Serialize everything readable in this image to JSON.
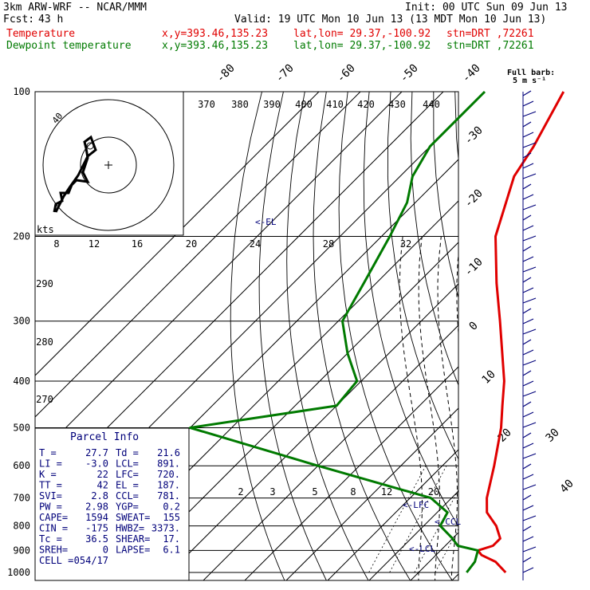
{
  "header": {
    "model": "3km ARW-WRF -- NCAR/MMM",
    "init": "Init: 00 UTC Sun 09 Jun 13",
    "fcst_label": "Fcst:",
    "fcst_value": "43 h",
    "valid": "Valid: 19 UTC Mon 10 Jun 13 (13 MDT Mon 10 Jun 13)",
    "temp_label": "Temperature",
    "dew_label": "Dewpoint temperature",
    "xy": "x,y=393.46,135.23",
    "latlon": "lat,lon= 29.37,-100.92",
    "stn": "stn=DRT ,72261"
  },
  "wind_legend": {
    "title": "Full barb:",
    "unit": "5 m s⁻¹"
  },
  "hodograph": {
    "unit": "kts",
    "ring_label": "40",
    "speed_ticks": [
      "8",
      "12",
      "16",
      "20",
      "24",
      "28",
      "32"
    ]
  },
  "parcel": {
    "title": "Parcel Info",
    "rows": [
      {
        "a": "T  =",
        "av": "27.7",
        "b": "Td =",
        "bv": "21.6"
      },
      {
        "a": "LI =",
        "av": "-3.0",
        "b": "LCL=",
        "bv": "891."
      },
      {
        "a": "K  =",
        "av": "22",
        "b": "LFC=",
        "bv": "720."
      },
      {
        "a": "TT =",
        "av": "42",
        "b": "EL =",
        "bv": "187."
      },
      {
        "a": "SVI=",
        "av": "2.8",
        "b": "CCL=",
        "bv": "781."
      },
      {
        "a": "PW =",
        "av": "2.98",
        "b": "YGP=",
        "bv": "0.2"
      },
      {
        "a": "CAPE=",
        "av": "1594",
        "b": "SWEAT=",
        "bv": "155"
      },
      {
        "a": "CIN =",
        "av": "-175",
        "b": "HWBZ=",
        "bv": "3373."
      },
      {
        "a": "Tc =",
        "av": "36.5",
        "b": "SHEAR=",
        "bv": "17."
      },
      {
        "a": "SREH=",
        "av": "0",
        "b": "LAPSE=",
        "bv": "6.1"
      },
      {
        "a": "CELL =",
        "av": "054/17",
        "b": "",
        "bv": ""
      }
    ]
  },
  "chart_data": {
    "type": "line",
    "xlabel": "",
    "ylabel": "",
    "pressure_levels": [
      "100",
      "200",
      "300",
      "400",
      "500",
      "600",
      "700",
      "800",
      "900",
      "1000"
    ],
    "isotherm_labels": [
      "-80",
      "-70",
      "-60",
      "-50",
      "-40",
      "-30",
      "-20",
      "-10",
      "0",
      "10",
      "20",
      "30",
      "40"
    ],
    "theta_labels": [
      "370",
      "380",
      "390",
      "400",
      "410",
      "420",
      "430",
      "440",
      "290",
      "280",
      "270"
    ],
    "mixing_ratio_labels": [
      "2",
      "3",
      "5",
      "8",
      "12",
      "20"
    ],
    "markers": [
      "<-EL",
      "<-LFC",
      "<-CCL",
      "<-LCL"
    ],
    "series": [
      {
        "name": "Temperature",
        "color": "#e00000",
        "points": [
          [
            1000,
            31
          ],
          [
            950,
            26
          ],
          [
            920,
            21
          ],
          [
            900,
            19
          ],
          [
            880,
            21.5
          ],
          [
            850,
            21.5
          ],
          [
            800,
            17.5
          ],
          [
            750,
            12
          ],
          [
            700,
            8.5
          ],
          [
            600,
            2.5
          ],
          [
            500,
            -5
          ],
          [
            450,
            -10
          ],
          [
            400,
            -15.5
          ],
          [
            300,
            -31
          ],
          [
            250,
            -41
          ],
          [
            200,
            -52.5
          ],
          [
            150,
            -62.5
          ],
          [
            130,
            -65
          ],
          [
            100,
            -71
          ]
        ]
      },
      {
        "name": "Dewpoint temperature",
        "color": "#007a00",
        "points": [
          [
            1000,
            21.6
          ],
          [
            950,
            21
          ],
          [
            900,
            19
          ],
          [
            880,
            13
          ],
          [
            850,
            10
          ],
          [
            800,
            4
          ],
          [
            750,
            2.5
          ],
          [
            700,
            -5
          ],
          [
            600,
            -40
          ],
          [
            500,
            -80
          ],
          [
            450,
            -50
          ],
          [
            400,
            -51
          ],
          [
            350,
            -60
          ],
          [
            300,
            -69
          ],
          [
            250,
            -73
          ],
          [
            200,
            -78
          ],
          [
            170,
            -82
          ],
          [
            150,
            -87
          ],
          [
            130,
            -90
          ],
          [
            100,
            -90
          ]
        ]
      }
    ]
  },
  "colors": {
    "temperature": "#e00000",
    "dewpoint": "#007a00",
    "wind": "#00007a"
  }
}
